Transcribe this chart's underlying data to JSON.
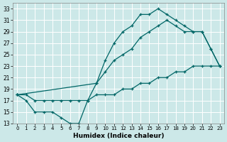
{
  "bg_color": "#cce8e8",
  "grid_color": "#b8d8d8",
  "line_color": "#006666",
  "xlabel": "Humidex (Indice chaleur)",
  "xlim": [
    -0.5,
    23.5
  ],
  "ylim": [
    13,
    34
  ],
  "yticks": [
    13,
    15,
    17,
    19,
    21,
    23,
    25,
    27,
    29,
    31,
    33
  ],
  "xticks": [
    0,
    1,
    2,
    3,
    4,
    5,
    6,
    7,
    8,
    9,
    10,
    11,
    12,
    13,
    14,
    15,
    16,
    17,
    18,
    19,
    20,
    21,
    22,
    23
  ],
  "curve1_x": [
    0,
    1,
    2,
    3,
    4,
    5,
    6,
    7,
    8,
    9,
    10,
    11,
    12,
    13,
    14,
    15,
    16,
    17,
    18,
    19,
    20,
    21,
    22,
    23
  ],
  "curve1_y": [
    18,
    17,
    15,
    15,
    15,
    14,
    13,
    13,
    17,
    20,
    24,
    27,
    29,
    30,
    32,
    32,
    33,
    32,
    31,
    30,
    29,
    29,
    26,
    23
  ],
  "curve2_x": [
    0,
    9,
    10,
    11,
    12,
    13,
    14,
    15,
    16,
    17,
    18,
    19,
    20,
    21,
    22,
    23
  ],
  "curve2_y": [
    18,
    20,
    22,
    24,
    25,
    26,
    28,
    29,
    30,
    31,
    30,
    29,
    29,
    29,
    26,
    23
  ],
  "curve3_x": [
    0,
    1,
    2,
    3,
    4,
    5,
    6,
    7,
    8,
    9,
    10,
    11,
    12,
    13,
    14,
    15,
    16,
    17,
    18,
    19,
    20,
    21,
    22,
    23
  ],
  "curve3_y": [
    18,
    18,
    17,
    17,
    17,
    17,
    17,
    17,
    17,
    18,
    18,
    18,
    19,
    19,
    20,
    20,
    21,
    21,
    22,
    22,
    23,
    23,
    23,
    23
  ]
}
